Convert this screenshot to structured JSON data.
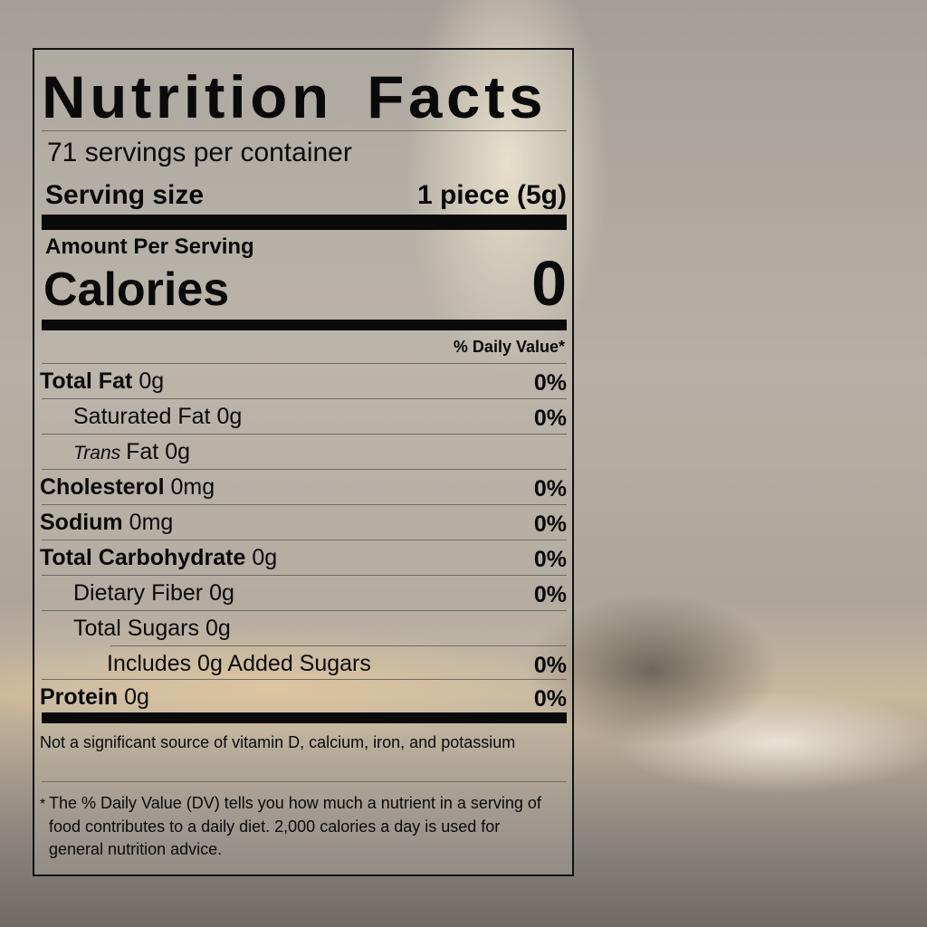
{
  "title": "Nutrition Facts",
  "servings_per_container": "71 servings per container",
  "serving_size": {
    "label": "Serving size",
    "value": "1 piece (5g)"
  },
  "amount_per_serving": "Amount Per Serving",
  "calories": {
    "label": "Calories",
    "value": "0"
  },
  "daily_value_header": "% Daily Value*",
  "nutrients": [
    {
      "name": "Total Fat",
      "amount": "0g",
      "dv": "0%",
      "bold": true,
      "indent": 0
    },
    {
      "name": "Saturated Fat",
      "amount": "0g",
      "dv": "0%",
      "bold": false,
      "indent": 1
    },
    {
      "name": "Trans",
      "name_suffix": "Fat",
      "amount": "0g",
      "dv": "",
      "bold": false,
      "indent": 1
    },
    {
      "name": "Cholesterol",
      "amount": "0mg",
      "dv": "0%",
      "bold": true,
      "indent": 0
    },
    {
      "name": "Sodium",
      "amount": "0mg",
      "dv": "0%",
      "bold": true,
      "indent": 0
    },
    {
      "name": "Total Carbohydrate",
      "amount": "0g",
      "dv": "0%",
      "bold": true,
      "indent": 0
    },
    {
      "name": "Dietary Fiber",
      "amount": "0g",
      "dv": "0%",
      "bold": false,
      "indent": 1
    },
    {
      "name": "Total Sugars",
      "amount": "0g",
      "dv": "",
      "bold": false,
      "indent": 1
    },
    {
      "name": "Includes 0g Added Sugars",
      "amount": "",
      "dv": "0%",
      "bold": false,
      "indent": 2
    },
    {
      "name": "Protein",
      "amount": "0g",
      "dv": "0%",
      "bold": true,
      "indent": 0
    }
  ],
  "not_significant": "Not a significant source of vitamin D, calcium, iron, and potassium",
  "footnote_star": "*",
  "footnote": "The % Daily Value (DV) tells you how much a nutrient in a serving of food contributes to a daily diet. 2,000 calories a day is used for general nutrition advice."
}
